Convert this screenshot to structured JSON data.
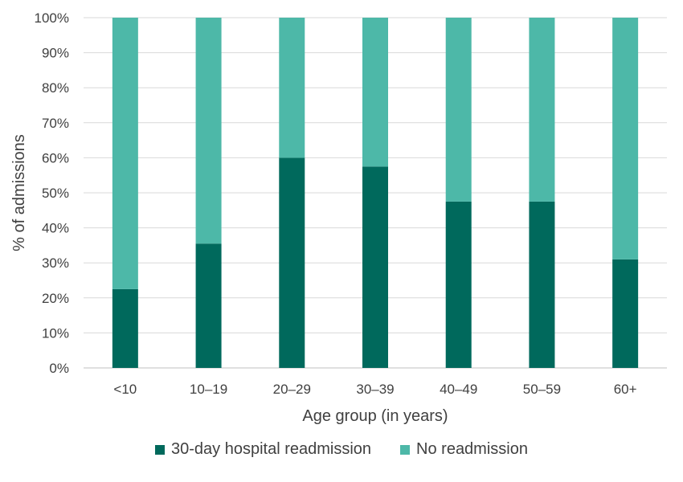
{
  "chart_data": {
    "type": "bar",
    "stacked": true,
    "title": "",
    "xlabel": "Age group (in years)",
    "ylabel": "% of admissions",
    "ylim": [
      0,
      100
    ],
    "yticks": [
      "0%",
      "10%",
      "20%",
      "30%",
      "40%",
      "50%",
      "60%",
      "70%",
      "80%",
      "90%",
      "100%"
    ],
    "grid": true,
    "legend_position": "bottom",
    "categories": [
      "<10",
      "10–19",
      "20–29",
      "30–39",
      "40–49",
      "50–59",
      "60+"
    ],
    "series": [
      {
        "name": "30-day hospital readmission",
        "color": "#00695C",
        "values": [
          22.5,
          35.5,
          60.0,
          57.5,
          47.5,
          47.5,
          31.0
        ]
      },
      {
        "name": "No readmission",
        "color": "#4DB8A8",
        "values": [
          77.5,
          64.5,
          40.0,
          42.5,
          52.5,
          52.5,
          69.0
        ]
      }
    ]
  }
}
